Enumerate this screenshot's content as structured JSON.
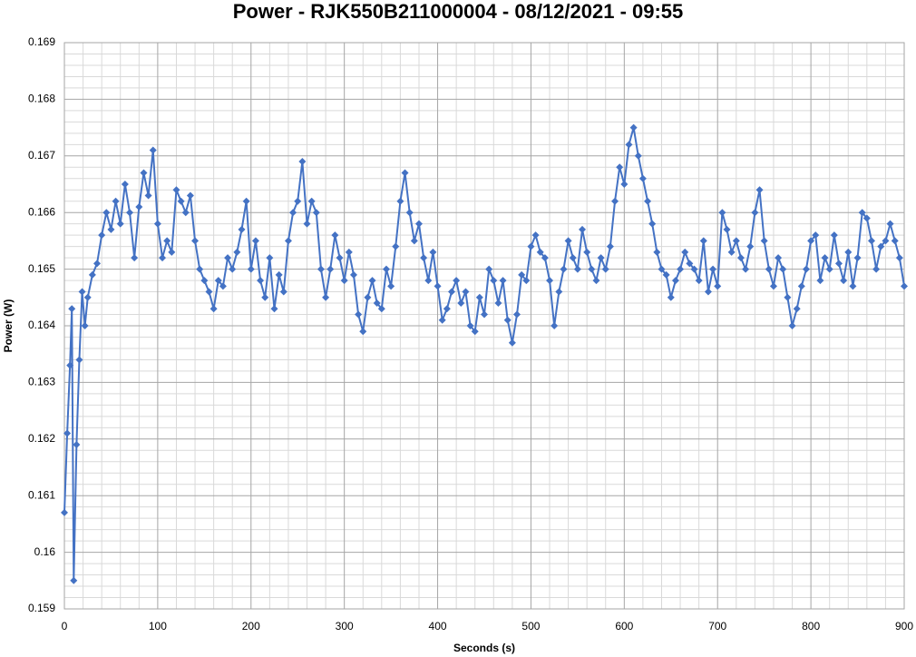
{
  "chart_data": {
    "type": "line",
    "title": "Power - RJK550B211000004 - 08/12/2021 - 09:55",
    "xlabel": "Seconds (s)",
    "ylabel": "Power (W)",
    "xlim": [
      0,
      900
    ],
    "xticks": [
      0,
      100,
      200,
      300,
      400,
      500,
      600,
      700,
      800,
      900
    ],
    "ylim": [
      0.159,
      0.169
    ],
    "yticks": [
      0.159,
      0.16,
      0.161,
      0.162,
      0.163,
      0.164,
      0.165,
      0.166,
      0.167,
      0.168,
      0.169
    ],
    "grid": true,
    "minor_grid": true,
    "series": [
      {
        "color": "#4472c4",
        "x": [
          0,
          3,
          6,
          8,
          10,
          13,
          16,
          19,
          22,
          25,
          30,
          35,
          40,
          45,
          50,
          55,
          60,
          65,
          70,
          75,
          80,
          85,
          90,
          95,
          100,
          105,
          110,
          115,
          120,
          125,
          130,
          135,
          140,
          145,
          150,
          155,
          160,
          165,
          170,
          175,
          180,
          185,
          190,
          195,
          200,
          205,
          210,
          215,
          220,
          225,
          230,
          235,
          240,
          245,
          250,
          255,
          260,
          265,
          270,
          275,
          280,
          285,
          290,
          295,
          300,
          305,
          310,
          315,
          320,
          325,
          330,
          335,
          340,
          345,
          350,
          355,
          360,
          365,
          370,
          375,
          380,
          385,
          390,
          395,
          400,
          405,
          410,
          415,
          420,
          425,
          430,
          435,
          440,
          445,
          450,
          455,
          460,
          465,
          470,
          475,
          480,
          485,
          490,
          495,
          500,
          505,
          510,
          515,
          520,
          525,
          530,
          535,
          540,
          545,
          550,
          555,
          560,
          565,
          570,
          575,
          580,
          585,
          590,
          595,
          600,
          605,
          610,
          615,
          620,
          625,
          630,
          635,
          640,
          645,
          650,
          655,
          660,
          665,
          670,
          675,
          680,
          685,
          690,
          695,
          700,
          705,
          710,
          715,
          720,
          725,
          730,
          735,
          740,
          745,
          750,
          755,
          760,
          765,
          770,
          775,
          780,
          785,
          790,
          795,
          800,
          805,
          810,
          815,
          820,
          825,
          830,
          835,
          840,
          845,
          850,
          855,
          860,
          865,
          870,
          875,
          880,
          885,
          890,
          895,
          900
        ],
        "values": [
          0.1607,
          0.1621,
          0.1633,
          0.1643,
          0.1595,
          0.1619,
          0.1634,
          0.1646,
          0.164,
          0.1645,
          0.1649,
          0.1651,
          0.1656,
          0.166,
          0.1657,
          0.1662,
          0.1658,
          0.1665,
          0.166,
          0.1652,
          0.1661,
          0.1667,
          0.1663,
          0.1671,
          0.1658,
          0.1652,
          0.1655,
          0.1653,
          0.1664,
          0.1662,
          0.166,
          0.1663,
          0.1655,
          0.165,
          0.1648,
          0.1646,
          0.1643,
          0.1648,
          0.1647,
          0.1652,
          0.165,
          0.1653,
          0.1657,
          0.1662,
          0.165,
          0.1655,
          0.1648,
          0.1645,
          0.1652,
          0.1643,
          0.1649,
          0.1646,
          0.1655,
          0.166,
          0.1662,
          0.1669,
          0.1658,
          0.1662,
          0.166,
          0.165,
          0.1645,
          0.165,
          0.1656,
          0.1652,
          0.1648,
          0.1653,
          0.1649,
          0.1642,
          0.1639,
          0.1645,
          0.1648,
          0.1644,
          0.1643,
          0.165,
          0.1647,
          0.1654,
          0.1662,
          0.1667,
          0.166,
          0.1655,
          0.1658,
          0.1652,
          0.1648,
          0.1653,
          0.1647,
          0.1641,
          0.1643,
          0.1646,
          0.1648,
          0.1644,
          0.1646,
          0.164,
          0.1639,
          0.1645,
          0.1642,
          0.165,
          0.1648,
          0.1644,
          0.1648,
          0.1641,
          0.1637,
          0.1642,
          0.1649,
          0.1648,
          0.1654,
          0.1656,
          0.1653,
          0.1652,
          0.1648,
          0.164,
          0.1646,
          0.165,
          0.1655,
          0.1652,
          0.165,
          0.1657,
          0.1653,
          0.165,
          0.1648,
          0.1652,
          0.165,
          0.1654,
          0.1662,
          0.1668,
          0.1665,
          0.1672,
          0.1675,
          0.167,
          0.1666,
          0.1662,
          0.1658,
          0.1653,
          0.165,
          0.1649,
          0.1645,
          0.1648,
          0.165,
          0.1653,
          0.1651,
          0.165,
          0.1648,
          0.1655,
          0.1646,
          0.165,
          0.1647,
          0.166,
          0.1657,
          0.1653,
          0.1655,
          0.1652,
          0.165,
          0.1654,
          0.166,
          0.1664,
          0.1655,
          0.165,
          0.1647,
          0.1652,
          0.165,
          0.1645,
          0.164,
          0.1643,
          0.1647,
          0.165,
          0.1655,
          0.1656,
          0.1648,
          0.1652,
          0.165,
          0.1656,
          0.1651,
          0.1648,
          0.1653,
          0.1647,
          0.1652,
          0.166,
          0.1659,
          0.1655,
          0.165,
          0.1654,
          0.1655,
          0.1658,
          0.1655,
          0.1652,
          0.1647
        ]
      }
    ]
  }
}
